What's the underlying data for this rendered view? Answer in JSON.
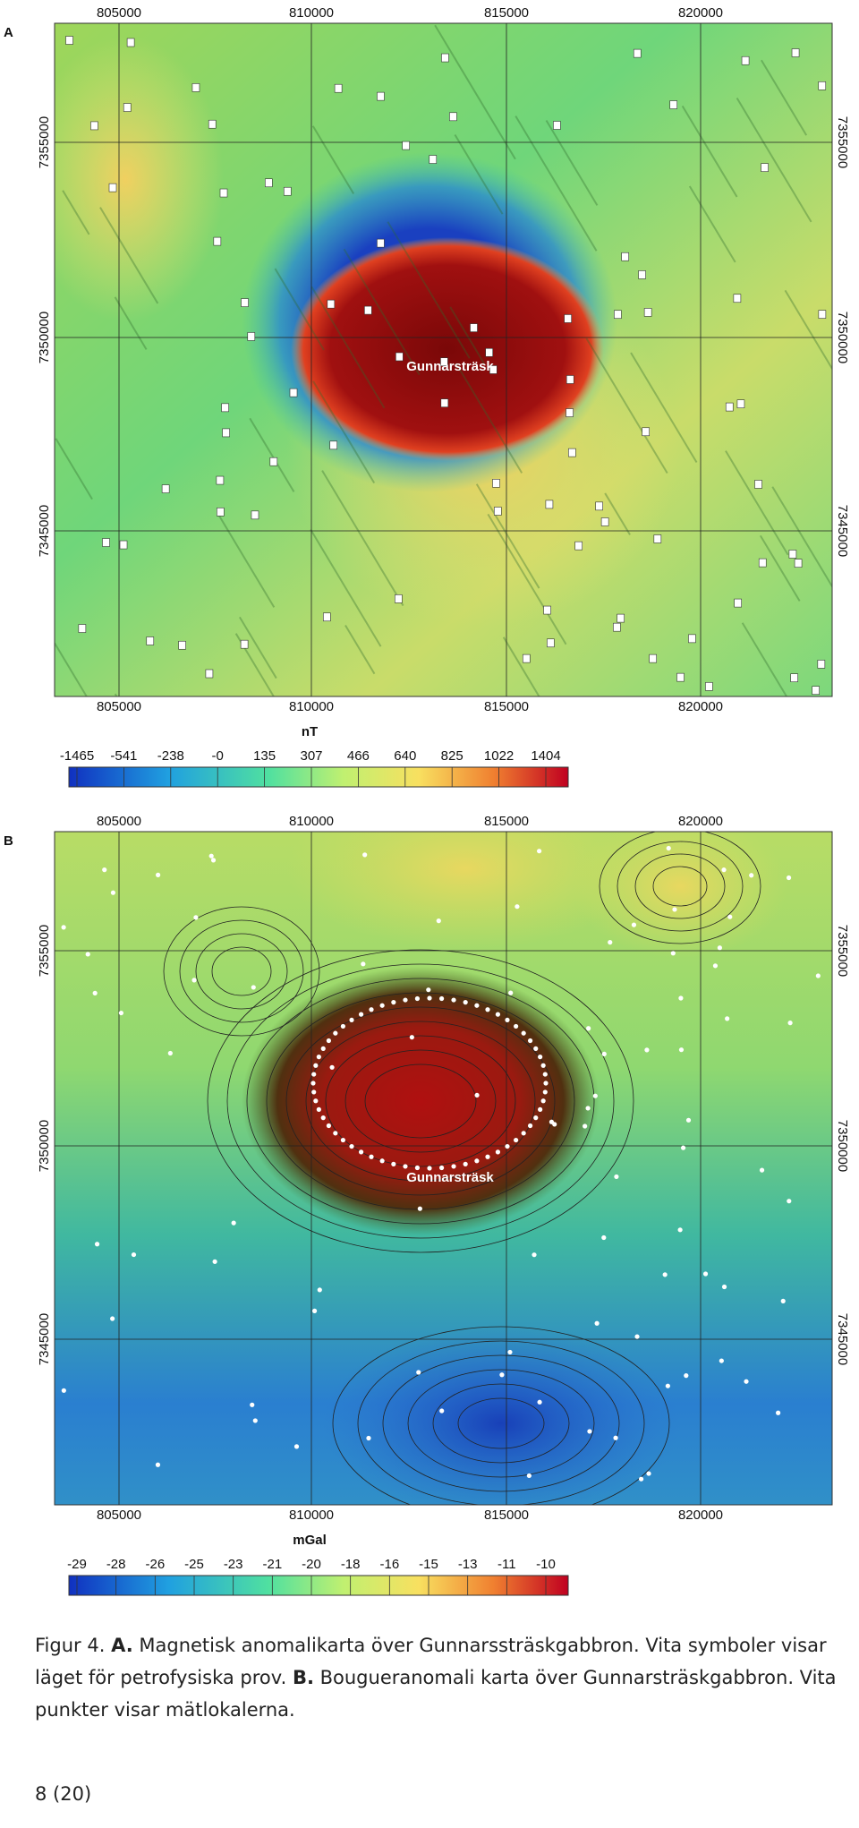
{
  "panels": [
    {
      "label": "A",
      "x_ticks": [
        "805000",
        "810000",
        "815000",
        "820000"
      ],
      "y_ticks": [
        "7355000",
        "7350000",
        "7345000"
      ],
      "place": "Gunnarsträsk",
      "unit": "nT",
      "scale": [
        "-1465",
        "-541",
        "-238",
        "-0",
        "135",
        "307",
        "466",
        "640",
        "825",
        "1022",
        "1404"
      ]
    },
    {
      "label": "B",
      "x_ticks": [
        "805000",
        "810000",
        "815000",
        "820000"
      ],
      "y_ticks": [
        "7355000",
        "7350000",
        "7345000"
      ],
      "place": "Gunnarsträsk",
      "unit": "mGal",
      "scale": [
        "-29",
        "-28",
        "-26",
        "-25",
        "-23",
        "-21",
        "-20",
        "-18",
        "-16",
        "-15",
        "-13",
        "-11",
        "-10"
      ]
    }
  ],
  "caption": {
    "figure": "Figur 4.",
    "a": "A.",
    "a_text": "Magnetisk anomalikarta över Gunnarssträskgabbron. Vita symboler visar läget för petrofysiska prov.",
    "b": "B.",
    "b_text": "Bougueranomali karta över Gunnarsträskgabbron. Vita punkter visar mätlokalerna."
  },
  "page_number": "8 (20)"
}
